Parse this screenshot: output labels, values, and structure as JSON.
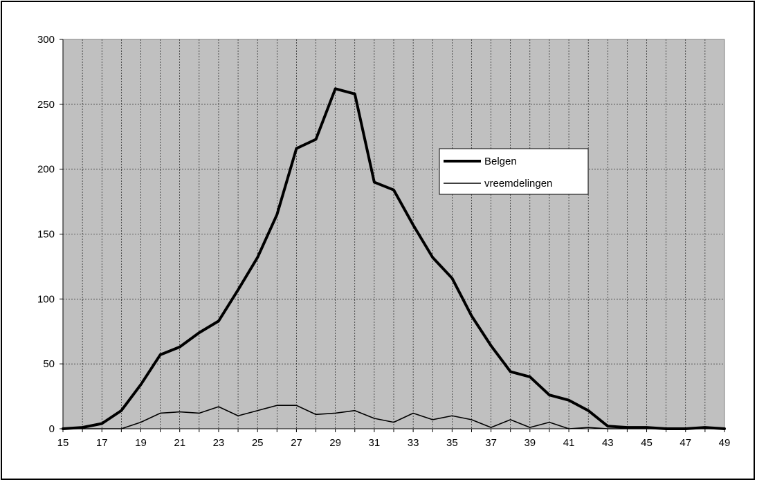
{
  "chart_data": {
    "type": "line",
    "title": "",
    "xlabel": "",
    "ylabel": "",
    "x": [
      15,
      16,
      17,
      18,
      19,
      20,
      21,
      22,
      23,
      24,
      25,
      26,
      27,
      28,
      29,
      30,
      31,
      32,
      33,
      34,
      35,
      36,
      37,
      38,
      39,
      40,
      41,
      42,
      43,
      44,
      45,
      46,
      47,
      48,
      49
    ],
    "xtick_labels": [
      "15",
      "17",
      "19",
      "21",
      "23",
      "25",
      "27",
      "29",
      "31",
      "33",
      "35",
      "37",
      "39",
      "41",
      "43",
      "45",
      "47",
      "49"
    ],
    "ylim": [
      0,
      300
    ],
    "ytick_labels": [
      "0",
      "50",
      "100",
      "150",
      "200",
      "250",
      "300"
    ],
    "grid": true,
    "plot_background": "#c0c0c0",
    "legend_position": "right",
    "series": [
      {
        "name": "Belgen",
        "color": "#000000",
        "line_weight": "thick",
        "values": [
          0,
          1,
          4,
          14,
          34,
          57,
          63,
          74,
          83,
          107,
          132,
          165,
          216,
          223,
          262,
          258,
          190,
          184,
          157,
          132,
          116,
          87,
          64,
          44,
          40,
          26,
          22,
          14,
          2,
          1,
          1,
          0,
          0,
          1,
          0
        ]
      },
      {
        "name": "vreemdelingen",
        "color": "#000000",
        "line_weight": "thin",
        "values": [
          0,
          0,
          0,
          0,
          5,
          12,
          13,
          12,
          17,
          10,
          14,
          18,
          18,
          11,
          12,
          14,
          8,
          5,
          12,
          7,
          10,
          7,
          1,
          7,
          1,
          5,
          0,
          1,
          0,
          0,
          0,
          0,
          0,
          0,
          0
        ]
      }
    ]
  }
}
